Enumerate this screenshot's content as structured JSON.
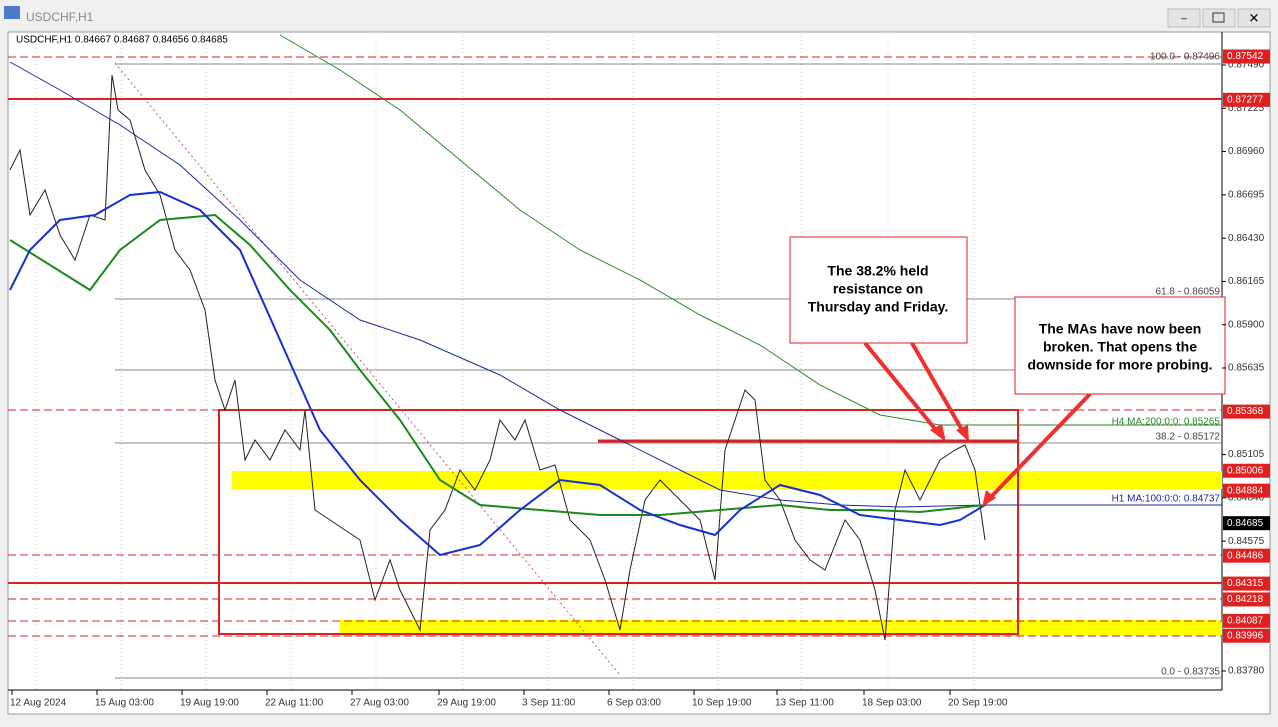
{
  "window": {
    "title": "USDCHF,H1"
  },
  "chart": {
    "header": "USDCHF,H1  0.84667 0.84687 0.84656 0.84685",
    "price_ticks": [
      "0.87490",
      "0.87225",
      "0.86960",
      "0.86695",
      "0.86430",
      "0.86165",
      "0.85900",
      "0.85635",
      "0.85105",
      "0.84840",
      "0.84575",
      "0.83780"
    ],
    "price_levels": [
      {
        "label": "0.87542",
        "style": "red"
      },
      {
        "label": "0.87277",
        "style": "red"
      },
      {
        "label": "0.85368",
        "style": "red"
      },
      {
        "label": "0.85006",
        "style": "red"
      },
      {
        "label": "0.84884",
        "style": "red"
      },
      {
        "label": "0.84685",
        "style": "black"
      },
      {
        "label": "0.84486",
        "style": "red"
      },
      {
        "label": "0.84315",
        "style": "red"
      },
      {
        "label": "0.84218",
        "style": "red"
      },
      {
        "label": "0.84087",
        "style": "red"
      },
      {
        "label": "0.83996",
        "style": "red"
      }
    ],
    "dates": [
      "12 Aug 2024",
      "15 Aug 03:00",
      "19 Aug 19:00",
      "22 Aug 11:00",
      "27 Aug 03:00",
      "29 Aug 19:00",
      "3 Sep 11:00",
      "6 Sep 03:00",
      "10 Sep 19:00",
      "13 Sep 11:00",
      "18 Sep 03:00",
      "20 Sep 19:00"
    ],
    "fib_labels": [
      "100.0 - 0.87496",
      "61.8 - 0.86059",
      "38.2 - 0.85172",
      "0.0 - 0.83735"
    ],
    "ma_labels": [
      "H4 MA:200:0:0: 0.85265",
      "H1 MA:100:0:0: 0.84737"
    ],
    "annotations": [
      {
        "lines": [
          "The 38.2% held",
          "resistance on",
          "Thursday and Friday."
        ]
      },
      {
        "lines": [
          "The MAs have now been",
          "broken.  That opens the",
          "downside for more probing."
        ]
      }
    ]
  }
}
